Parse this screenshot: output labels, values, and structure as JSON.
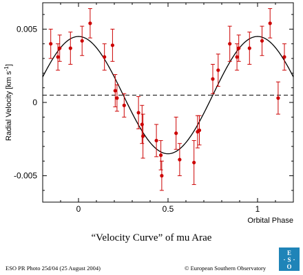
{
  "chart_data": {
    "type": "scatter",
    "xlabel": "Orbital Phase",
    "ylabel": "Radial Velocity [km s-1]",
    "xlim": [
      -0.2,
      1.2
    ],
    "ylim": [
      -0.0068,
      0.0068
    ],
    "x_ticks": [
      0,
      0.5,
      1
    ],
    "x_tick_labels": [
      "0",
      "0.5",
      "1"
    ],
    "y_ticks": [
      -0.005,
      0,
      0.005
    ],
    "y_tick_labels": [
      "-0.005",
      "0",
      "0.005"
    ],
    "grid": false,
    "reference_line": {
      "y": 0.0005,
      "style": "dashed"
    },
    "model_curve": {
      "type": "sinusoid",
      "mean": 0.0005,
      "amplitude": 0.004,
      "peak_phase": 0.0
    },
    "series": [
      {
        "marker_color": "#cc0000",
        "points": [
          {
            "x": -0.155,
            "y": 0.004,
            "err": 0.001
          },
          {
            "x": -0.115,
            "y": 0.0031,
            "err": 0.0009
          },
          {
            "x": -0.105,
            "y": 0.0037,
            "err": 0.0009
          },
          {
            "x": -0.045,
            "y": 0.0037,
            "err": 0.0011
          },
          {
            "x": 0.02,
            "y": 0.0042,
            "err": 0.001
          },
          {
            "x": 0.065,
            "y": 0.0054,
            "err": 0.001
          },
          {
            "x": 0.145,
            "y": 0.0031,
            "err": 0.0009
          },
          {
            "x": 0.19,
            "y": 0.0039,
            "err": 0.0011
          },
          {
            "x": 0.205,
            "y": 0.0008,
            "err": 0.0011
          },
          {
            "x": 0.215,
            "y": 0.0003,
            "err": 0.0009
          },
          {
            "x": 0.255,
            "y": -0.0002,
            "err": 0.0008
          },
          {
            "x": 0.335,
            "y": -0.0007,
            "err": 0.0011
          },
          {
            "x": 0.355,
            "y": -0.0015,
            "err": 0.0013
          },
          {
            "x": 0.36,
            "y": -0.0023,
            "err": 0.0015
          },
          {
            "x": 0.435,
            "y": -0.0026,
            "err": 0.0011
          },
          {
            "x": 0.46,
            "y": -0.0036,
            "err": 0.001
          },
          {
            "x": 0.465,
            "y": -0.005,
            "err": 0.001
          },
          {
            "x": 0.545,
            "y": -0.0021,
            "err": 0.0011
          },
          {
            "x": 0.565,
            "y": -0.0039,
            "err": 0.0011
          },
          {
            "x": 0.645,
            "y": -0.0041,
            "err": 0.0015
          },
          {
            "x": 0.665,
            "y": -0.002,
            "err": 0.0011
          },
          {
            "x": 0.675,
            "y": -0.0019,
            "err": 0.001
          },
          {
            "x": 0.75,
            "y": 0.0016,
            "err": 0.001
          },
          {
            "x": 0.78,
            "y": 0.0022,
            "err": 0.0011
          },
          {
            "x": 0.845,
            "y": 0.004,
            "err": 0.0012
          },
          {
            "x": 0.885,
            "y": 0.0031,
            "err": 0.0009
          },
          {
            "x": 0.895,
            "y": 0.0037,
            "err": 0.0009
          },
          {
            "x": 0.955,
            "y": 0.0037,
            "err": 0.0011
          },
          {
            "x": 1.025,
            "y": 0.0042,
            "err": 0.001
          },
          {
            "x": 1.07,
            "y": 0.0054,
            "err": 0.001
          },
          {
            "x": 1.115,
            "y": 0.0003,
            "err": 0.0011
          },
          {
            "x": 1.15,
            "y": 0.0031,
            "err": 0.0009
          }
        ]
      }
    ]
  },
  "caption": "“Velocity Curve” of mu Arae",
  "footer_left": "ESO PR Photo 25d/04 (25 August 2004)",
  "footer_right": "© European Southern Observatory",
  "logo": {
    "text": "ESO",
    "color": "#1f84b8"
  }
}
